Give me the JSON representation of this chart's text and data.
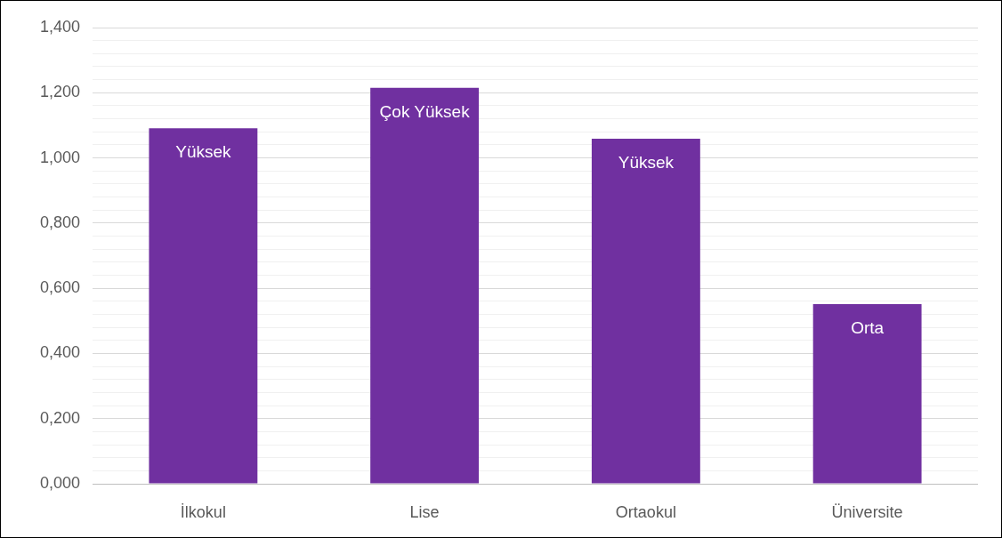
{
  "chart_data": {
    "type": "bar",
    "categories": [
      "İlkokul",
      "Lise",
      "Ortaokul",
      "Üniversite"
    ],
    "values": [
      1.091,
      1.215,
      1.059,
      0.551
    ],
    "value_labels": [
      "Yüksek",
      "Çok Yüksek",
      "Yüksek",
      "Orta"
    ],
    "color": "#7030a0",
    "ylim": [
      0,
      1.4
    ],
    "yticks": [
      {
        "value": 0,
        "label": "0,000"
      },
      {
        "value": 0.04,
        "label": null
      },
      {
        "value": 0.08,
        "label": null
      },
      {
        "value": 0.12,
        "label": null
      },
      {
        "value": 0.16,
        "label": null
      },
      {
        "value": 0.2,
        "label": "0,200"
      },
      {
        "value": 0.24,
        "label": null
      },
      {
        "value": 0.28,
        "label": null
      },
      {
        "value": 0.32,
        "label": null
      },
      {
        "value": 0.36,
        "label": null
      },
      {
        "value": 0.4,
        "label": "0,400"
      },
      {
        "value": 0.44,
        "label": null
      },
      {
        "value": 0.48,
        "label": null
      },
      {
        "value": 0.52,
        "label": null
      },
      {
        "value": 0.56,
        "label": null
      },
      {
        "value": 0.6,
        "label": "0,600"
      },
      {
        "value": 0.64,
        "label": null
      },
      {
        "value": 0.68,
        "label": null
      },
      {
        "value": 0.72,
        "label": null
      },
      {
        "value": 0.76,
        "label": null
      },
      {
        "value": 0.8,
        "label": "0,800"
      },
      {
        "value": 0.84,
        "label": null
      },
      {
        "value": 0.88,
        "label": null
      },
      {
        "value": 0.92,
        "label": null
      },
      {
        "value": 0.96,
        "label": null
      },
      {
        "value": 1,
        "label": "1,000"
      },
      {
        "value": 1.04,
        "label": null
      },
      {
        "value": 1.08,
        "label": null
      },
      {
        "value": 1.12,
        "label": null
      },
      {
        "value": 1.16,
        "label": null
      },
      {
        "value": 1.2,
        "label": "1,200"
      },
      {
        "value": 1.24,
        "label": null
      },
      {
        "value": 1.28,
        "label": null
      },
      {
        "value": 1.32,
        "label": null
      },
      {
        "value": 1.36,
        "label": null
      },
      {
        "value": 1.4,
        "label": "1,400"
      }
    ],
    "grid": "y"
  }
}
